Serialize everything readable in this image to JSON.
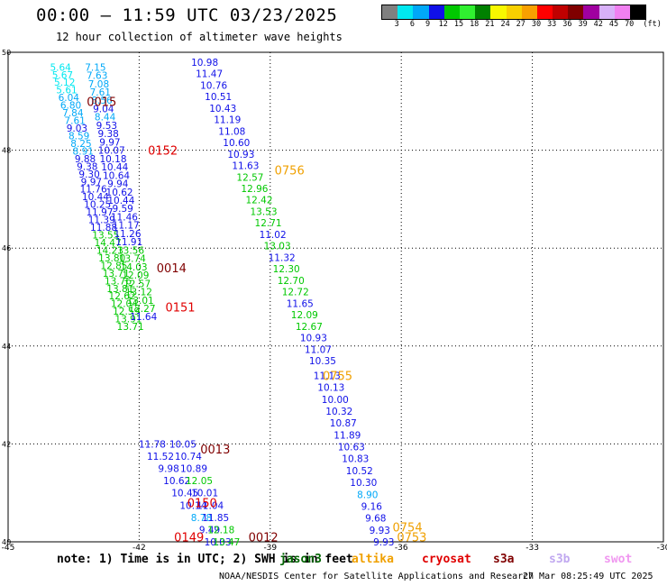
{
  "header": {
    "title": "00:00 – 11:59 UTC 03/23/2025",
    "subtitle": "12 hour collection of altimeter wave heights"
  },
  "legend": {
    "unit": "(ft)",
    "ticks": [
      "3",
      "6",
      "9",
      "12",
      "15",
      "18",
      "21",
      "24",
      "27",
      "30",
      "33",
      "36",
      "39",
      "42",
      "45",
      "70"
    ],
    "colors": [
      "#808080",
      "#00e8f0",
      "#00a8f8",
      "#1010e8",
      "#00c800",
      "#30f030",
      "#008000",
      "#f8f800",
      "#f8d000",
      "#f8a000",
      "#ff0000",
      "#c00000",
      "#800000",
      "#a000a0",
      "#d8b0f8",
      "#f080f0",
      "#000000"
    ]
  },
  "footer": {
    "note": "note: 1) Time is in UTC; 2) SWH is in feet",
    "missions": [
      {
        "name": "jason3",
        "color": "#006400"
      },
      {
        "name": "altika",
        "color": "#f0a000"
      },
      {
        "name": "cryosat",
        "color": "#e00000"
      },
      {
        "name": "s3a",
        "color": "#800000"
      },
      {
        "name": "s3b",
        "color": "#c0a8f0"
      },
      {
        "name": "swot",
        "color": "#f098f0"
      }
    ],
    "credit": "NOAA/NESDIS Center for Satellite Applications and Research",
    "timestamp": "27 Mar 08:25:49 UTC 2025"
  },
  "chart_data": {
    "type": "scatter",
    "xlim": [
      -45,
      -30
    ],
    "ylim": [
      40,
      50
    ],
    "x_ticks": [
      "-45",
      "-42",
      "-39",
      "-36",
      "-33",
      "-30"
    ],
    "y_ticks": [
      "40",
      "42",
      "44",
      "46",
      "48",
      "50"
    ],
    "grid": true,
    "passes": [
      {
        "label": "0015",
        "color": "#800000",
        "lon": -43.2,
        "lat": 49.0
      },
      {
        "label": "0152",
        "color": "#e00000",
        "lon": -41.8,
        "lat": 48.0
      },
      {
        "label": "0756",
        "color": "#f0a000",
        "lon": -38.9,
        "lat": 47.6
      },
      {
        "label": "0014",
        "color": "#800000",
        "lon": -41.6,
        "lat": 45.6
      },
      {
        "label": "0151",
        "color": "#e00000",
        "lon": -41.4,
        "lat": 44.8
      },
      {
        "label": "0755",
        "color": "#f0a000",
        "lon": -37.8,
        "lat": 43.4
      },
      {
        "label": "0013",
        "color": "#800000",
        "lon": -40.6,
        "lat": 41.9
      },
      {
        "label": "0150",
        "color": "#e00000",
        "lon": -40.9,
        "lat": 40.8
      },
      {
        "label": "0149",
        "color": "#e00000",
        "lon": -41.2,
        "lat": 40.1
      },
      {
        "label": "0012",
        "color": "#800000",
        "lon": -39.5,
        "lat": 40.1
      },
      {
        "label": "0754",
        "color": "#f0a000",
        "lon": -36.2,
        "lat": 40.3
      },
      {
        "label": "0753",
        "color": "#f0a000",
        "lon": -36.1,
        "lat": 40.1
      }
    ],
    "tracks": [
      {
        "lon_top": -43.8,
        "lon_bottom": -42.2,
        "lat_top": 49.7,
        "lat_bottom": 44.4,
        "values": [
          5.64,
          5.67,
          5.12,
          5.61,
          6.04,
          6.8,
          7.84,
          7.61,
          9.03,
          8.59,
          8.25,
          8.91,
          9.88,
          9.38,
          9.3,
          9.97,
          11.76,
          10.44,
          10.25,
          11.97,
          11.39,
          11.88,
          13.55,
          14.47,
          14.23,
          13.8,
          12.85,
          13.71,
          13.76,
          13.81,
          12.62,
          12.04,
          12.59,
          13.91,
          13.71
        ]
      },
      {
        "lon_top": -43.0,
        "lon_bottom": -41.9,
        "lat_top": 49.7,
        "lat_bottom": 44.6,
        "values": [
          7.15,
          7.63,
          7.08,
          7.61,
          8.56,
          9.04,
          8.44,
          9.53,
          9.38,
          9.97,
          10.07,
          10.18,
          10.44,
          10.64,
          9.94,
          10.62,
          10.44,
          9.59,
          11.46,
          11.17,
          11.26,
          11.91,
          13.56,
          13.74,
          14.03,
          12.09,
          12.57,
          13.12,
          13.01,
          12.27,
          11.64
        ]
      },
      {
        "lon_top": -41.7,
        "lon_bottom": -40.2,
        "lat_top": 42.0,
        "lat_bottom": 40.0,
        "values": [
          11.78,
          11.52,
          9.98,
          10.62,
          10.45,
          10.14,
          8.78,
          9.49,
          10.03
        ]
      },
      {
        "lon_top": -41.0,
        "lon_bottom": -40.0,
        "lat_top": 42.0,
        "lat_bottom": 40.0,
        "values": [
          10.05,
          10.74,
          10.89,
          12.05,
          10.01,
          11.04,
          11.85,
          12.18,
          13.47
        ]
      },
      {
        "lon_top": -40.5,
        "lon_bottom": -37.8,
        "lat_top": 49.8,
        "lat_bottom": 43.7,
        "values": [
          10.98,
          11.47,
          10.76,
          10.51,
          10.43,
          11.19,
          11.08,
          10.6,
          10.93,
          11.63,
          12.57,
          12.96,
          12.42,
          13.53,
          12.71,
          11.02,
          13.03,
          11.32,
          12.3,
          12.7,
          12.72,
          11.65,
          12.09,
          12.67,
          10.93,
          11.07,
          10.35
        ]
      },
      {
        "lon_top": -37.7,
        "lon_bottom": -36.4,
        "lat_top": 43.4,
        "lat_bottom": 40.0,
        "values": [
          11.13,
          10.13,
          10.0,
          10.32,
          10.87,
          11.89,
          10.63,
          10.83,
          10.52,
          10.3,
          8.9,
          9.16,
          9.68,
          9.93,
          9.93
        ]
      }
    ]
  }
}
